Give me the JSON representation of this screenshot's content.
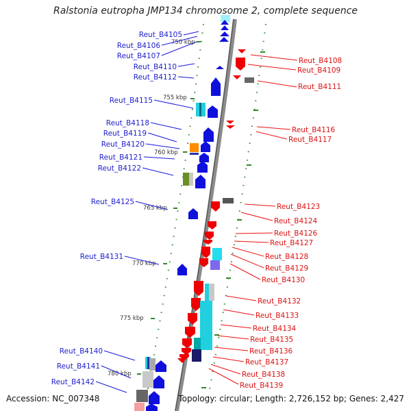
{
  "title": "Ralstonia eutropha JMP134 chromosome 2, complete sequence",
  "footer": {
    "accession": "Accession: NC_007348",
    "summary": "Topology: circular; Length: 2,726,152 bp; Genes: 2,427"
  },
  "colors": {
    "forward_gene": "#1010dd",
    "reverse_gene": "#ee0000",
    "forward_label": "#2020cc",
    "reverse_label": "#dd1111",
    "backbone": "#8c8c8c",
    "tick": "#2a8a2a"
  },
  "ticks": [
    "750 kbp",
    "755 kbp",
    "760 kbp",
    "765 kbp",
    "770 kbp",
    "775 kbp",
    "780 kbp"
  ],
  "left_genes": [
    "Reut_B4105",
    "Reut_B4106",
    "Reut_B4107",
    "Reut_B4110",
    "Reut_B4112",
    "Reut_B4115",
    "Reut_B4118",
    "Reut_B4119",
    "Reut_B4120",
    "Reut_B4121",
    "Reut_B4122",
    "Reut_B4125",
    "Reut_B4131",
    "Reut_B4140",
    "Reut_B4141",
    "Reut_B4142"
  ],
  "right_genes": [
    "Reut_B4108",
    "Reut_B4109",
    "Reut_B4111",
    "Reut_B4116",
    "Reut_B4117",
    "Reut_B4123",
    "Reut_B4124",
    "Reut_B4126",
    "Reut_B4127",
    "Reut_B4128",
    "Reut_B4129",
    "Reut_B4130",
    "Reut_B4132",
    "Reut_B4133",
    "Reut_B4134",
    "Reut_B4135",
    "Reut_B4136",
    "Reut_B4137",
    "Reut_B4138",
    "Reut_B4139"
  ]
}
